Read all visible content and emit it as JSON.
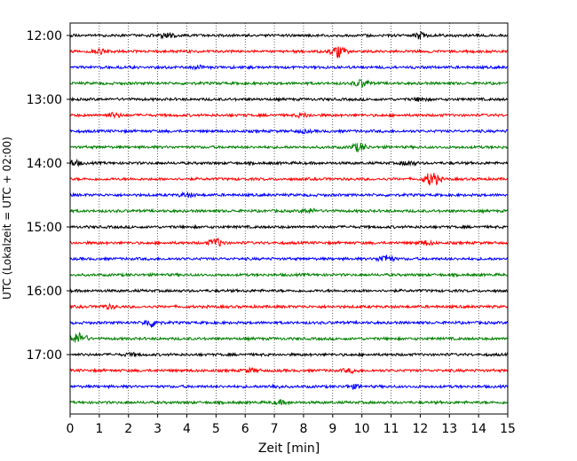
{
  "chart_data": {
    "type": "line",
    "title": "",
    "xlabel": "Zeit  [min]",
    "ylabel": "UTC (Lokalzeit = UTC + 02:00)",
    "xlim": [
      0,
      15
    ],
    "x_ticks": [
      "0",
      "1",
      "2",
      "3",
      "4",
      "5",
      "6",
      "7",
      "8",
      "9",
      "10",
      "11",
      "12",
      "13",
      "14",
      "15"
    ],
    "y_ticks": [
      "12:00",
      "13:00",
      "14:00",
      "15:00",
      "16:00",
      "17:00"
    ],
    "grid": "vertical dotted at each minute",
    "trace_interval_min": 15,
    "colors_cycle": [
      "#000000",
      "#ff0000",
      "#0000ff",
      "#008000"
    ],
    "series": [
      {
        "start": "12:00",
        "color": "#000000",
        "events": [
          [
            3.3,
            0.5
          ],
          [
            12.0,
            0.9
          ]
        ]
      },
      {
        "start": "12:15",
        "color": "#ff0000",
        "events": [
          [
            1.0,
            0.5
          ],
          [
            9.2,
            1.6
          ]
        ]
      },
      {
        "start": "12:30",
        "color": "#0000ff",
        "events": [
          [
            4.5,
            0.5
          ]
        ]
      },
      {
        "start": "12:45",
        "color": "#008000",
        "events": [
          [
            10.0,
            0.9
          ]
        ]
      },
      {
        "start": "13:00",
        "color": "#000000",
        "events": [
          [
            12.0,
            0.4
          ]
        ]
      },
      {
        "start": "13:15",
        "color": "#ff0000",
        "events": [
          [
            1.5,
            0.5
          ],
          [
            8.0,
            0.4
          ]
        ]
      },
      {
        "start": "13:30",
        "color": "#0000ff",
        "events": [
          [
            8.0,
            0.3
          ]
        ]
      },
      {
        "start": "13:45",
        "color": "#008000",
        "events": [
          [
            9.9,
            1.0
          ]
        ]
      },
      {
        "start": "14:00",
        "color": "#000000",
        "events": [
          [
            0.1,
            0.7
          ],
          [
            11.6,
            0.5
          ]
        ]
      },
      {
        "start": "14:15",
        "color": "#ff0000",
        "events": [
          [
            12.4,
            1.8
          ]
        ]
      },
      {
        "start": "14:30",
        "color": "#0000ff",
        "events": [
          [
            4.0,
            0.5
          ]
        ]
      },
      {
        "start": "14:45",
        "color": "#008000",
        "events": [
          [
            8.2,
            0.5
          ]
        ]
      },
      {
        "start": "15:00",
        "color": "#000000",
        "events": []
      },
      {
        "start": "15:15",
        "color": "#ff0000",
        "events": [
          [
            5.0,
            1.0
          ],
          [
            12.2,
            0.5
          ]
        ]
      },
      {
        "start": "15:30",
        "color": "#0000ff",
        "events": [
          [
            10.8,
            0.9
          ]
        ]
      },
      {
        "start": "15:45",
        "color": "#008000",
        "events": []
      },
      {
        "start": "16:00",
        "color": "#000000",
        "events": []
      },
      {
        "start": "16:15",
        "color": "#ff0000",
        "events": [
          [
            1.3,
            0.4
          ]
        ]
      },
      {
        "start": "16:30",
        "color": "#0000ff",
        "events": [
          [
            2.8,
            1.0
          ]
        ]
      },
      {
        "start": "16:45",
        "color": "#008000",
        "events": [
          [
            0.3,
            1.4
          ]
        ]
      },
      {
        "start": "17:00",
        "color": "#000000",
        "events": [
          [
            2.1,
            0.3
          ]
        ]
      },
      {
        "start": "17:15",
        "color": "#ff0000",
        "events": [
          [
            6.2,
            0.4
          ],
          [
            9.6,
            0.4
          ]
        ]
      },
      {
        "start": "17:30",
        "color": "#0000ff",
        "events": [
          [
            7.0,
            0.3
          ],
          [
            9.7,
            0.4
          ]
        ]
      },
      {
        "start": "17:45",
        "color": "#008000",
        "events": [
          [
            7.2,
            0.4
          ]
        ]
      }
    ]
  }
}
